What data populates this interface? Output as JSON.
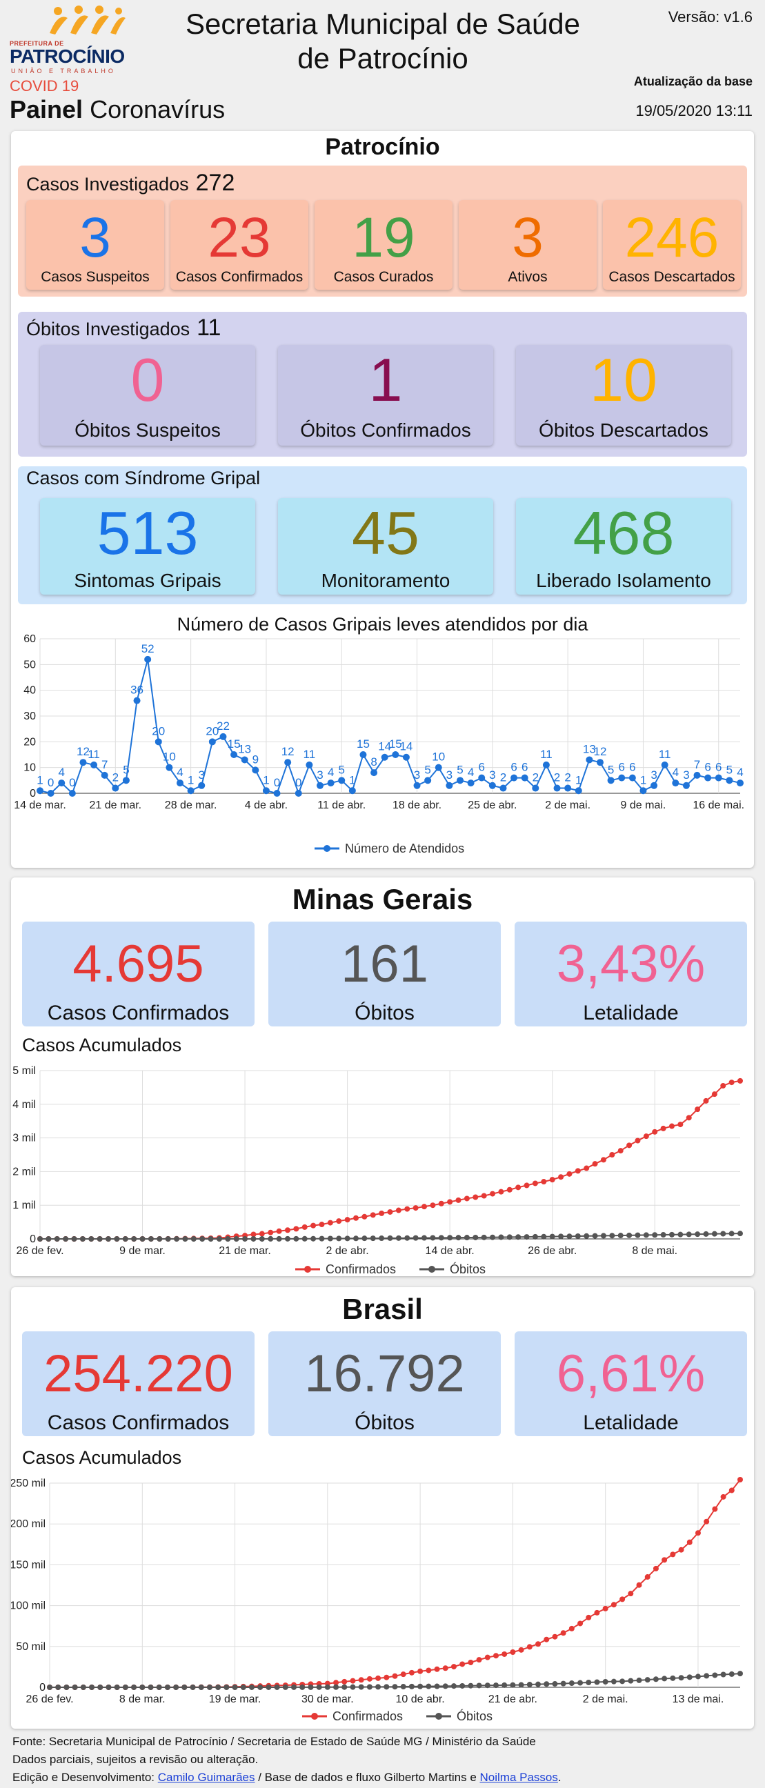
{
  "header": {
    "logo_top": "PREFEITURA DE",
    "logo_brand": "PATROCÍNIO",
    "logo_tag": "UNIÃO E TRABALHO",
    "title_line1": "Secretaria Municipal de Saúde",
    "title_line2": "de Patrocínio",
    "version": "Versão: v1.6",
    "covid_label": "COVID 19",
    "panel_bold": "Painel",
    "panel_rest": "Coronavírus",
    "update_label": "Atualização da base",
    "update_time": "19/05/2020 13:11"
  },
  "patrocinio": {
    "title": "Patrocínio",
    "casos": {
      "label": "Casos Investigados",
      "count": "272",
      "tiles": [
        {
          "value": "3",
          "label": "Casos Suspeitos",
          "color": "#1a73e8"
        },
        {
          "value": "23",
          "label": "Casos Confirmados",
          "color": "#e53935"
        },
        {
          "value": "19",
          "label": "Casos Curados",
          "color": "#43a047"
        },
        {
          "value": "3",
          "label": "Ativos",
          "color": "#ef6c00"
        },
        {
          "value": "246",
          "label": "Casos Descartados",
          "color": "#ffb300"
        }
      ]
    },
    "obitos": {
      "label": "Óbitos Investigados",
      "count": "11",
      "tiles": [
        {
          "value": "0",
          "label": "Óbitos Suspeitos",
          "color": "#f06292"
        },
        {
          "value": "1",
          "label": "Óbitos Confirmados",
          "color": "#880e4f"
        },
        {
          "value": "10",
          "label": "Óbitos Descartados",
          "color": "#ffb300"
        }
      ]
    },
    "sindrome": {
      "label": "Casos com Síndrome Gripal",
      "tiles": [
        {
          "value": "513",
          "label": "Sintomas Gripais",
          "color": "#1a73e8"
        },
        {
          "value": "45",
          "label": "Monitoramento",
          "color": "#827717"
        },
        {
          "value": "468",
          "label": "Liberado Isolamento",
          "color": "#43a047"
        }
      ]
    }
  },
  "chart_data": [
    {
      "type": "line",
      "title": "Número de Casos Gripais leves atendidos por dia",
      "x_start": "14 de mar.",
      "x_end": "17 de mai.",
      "x_tick_labels": [
        "14 de mar.",
        "21 de mar.",
        "28 de mar.",
        "4 de abr.",
        "11 de abr.",
        "18 de abr.",
        "25 de abr.",
        "2 de mai.",
        "9 de mai.",
        "16 de mai."
      ],
      "ylim": [
        0,
        60
      ],
      "y_tick_labels": [
        "0",
        "10",
        "20",
        "30",
        "40",
        "50",
        "60"
      ],
      "series": [
        {
          "name": "Número de Atendidos",
          "color": "#1e73d8",
          "values": [
            1,
            0,
            4,
            0,
            12,
            11,
            7,
            2,
            5,
            36,
            52,
            20,
            10,
            4,
            1,
            3,
            20,
            22,
            15,
            13,
            9,
            1,
            0,
            12,
            0,
            11,
            3,
            4,
            5,
            1,
            15,
            8,
            14,
            15,
            14,
            3,
            5,
            10,
            3,
            5,
            4,
            6,
            3,
            2,
            6,
            6,
            2,
            11,
            2,
            2,
            1,
            13,
            12,
            5,
            6,
            6,
            1,
            3,
            11,
            4,
            3,
            7,
            6,
            6,
            5,
            4
          ]
        }
      ],
      "legend": "bottom",
      "grid": true
    },
    {
      "type": "line",
      "title": "Casos Acumulados",
      "x_start": "26 de fev.",
      "x_end": "18 de mai.",
      "x_tick_labels": [
        "26 de fev.",
        "9 de mar.",
        "21 de mar.",
        "2 de abr.",
        "14 de abr.",
        "26 de abr.",
        "8 de mai."
      ],
      "ylim": [
        0,
        5000
      ],
      "y_tick_labels": [
        "0",
        "1 mil",
        "2 mil",
        "3 mil",
        "4 mil",
        "5 mil"
      ],
      "series": [
        {
          "name": "Confirmados",
          "color": "#e53935",
          "values": [
            0,
            0,
            0,
            0,
            0,
            0,
            0,
            0,
            0,
            0,
            0,
            0,
            0,
            1,
            1,
            2,
            4,
            8,
            12,
            16,
            21,
            30,
            50,
            80,
            100,
            133,
            153,
            190,
            230,
            261,
            300,
            350,
            397,
            430,
            480,
            530,
            570,
            620,
            660,
            710,
            760,
            800,
            850,
            890,
            920,
            960,
            1000,
            1050,
            1100,
            1150,
            1200,
            1240,
            1280,
            1340,
            1400,
            1460,
            1530,
            1590,
            1650,
            1700,
            1760,
            1840,
            1930,
            2020,
            2100,
            2230,
            2350,
            2500,
            2620,
            2780,
            2920,
            3050,
            3180,
            3280,
            3350,
            3400,
            3600,
            3850,
            4100,
            4300,
            4550,
            4650,
            4695
          ]
        },
        {
          "name": "Óbitos",
          "color": "#555555",
          "values": [
            0,
            0,
            0,
            0,
            0,
            0,
            0,
            0,
            0,
            0,
            0,
            0,
            0,
            0,
            0,
            0,
            0,
            0,
            0,
            0,
            0,
            0,
            0,
            0,
            1,
            1,
            1,
            2,
            2,
            3,
            3,
            4,
            6,
            8,
            10,
            12,
            14,
            15,
            17,
            18,
            20,
            22,
            24,
            26,
            28,
            30,
            32,
            34,
            36,
            38,
            40,
            42,
            44,
            47,
            50,
            53,
            56,
            60,
            63,
            66,
            70,
            74,
            78,
            82,
            86,
            90,
            94,
            98,
            102,
            106,
            110,
            114,
            118,
            122,
            126,
            130,
            135,
            140,
            145,
            150,
            154,
            158,
            161
          ]
        }
      ],
      "legend": "bottom",
      "grid": true
    },
    {
      "type": "line",
      "title": "Casos Acumulados",
      "x_start": "26 de fev.",
      "x_end": "18 de mai.",
      "x_tick_labels": [
        "26 de fev.",
        "8 de mar.",
        "19 de mar.",
        "30 de mar.",
        "10 de abr.",
        "21 de abr.",
        "2 de mai.",
        "13 de mai."
      ],
      "ylim": [
        0,
        250000
      ],
      "y_tick_labels": [
        "0",
        "50 mil",
        "100 mil",
        "150 mil",
        "200 mil",
        "250 mil"
      ],
      "series": [
        {
          "name": "Confirmados",
          "color": "#e53935",
          "values": [
            1,
            1,
            1,
            2,
            2,
            2,
            2,
            3,
            8,
            13,
            20,
            25,
            31,
            38,
            52,
            77,
            98,
            121,
            200,
            234,
            291,
            428,
            621,
            904,
            1128,
            1546,
            1891,
            2201,
            2433,
            2915,
            3417,
            3904,
            4256,
            4579,
            5717,
            6836,
            7910,
            9056,
            10278,
            11130,
            12056,
            13717,
            15927,
            17857,
            19638,
            20727,
            22169,
            23430,
            25262,
            28320,
            30425,
            33682,
            36599,
            38654,
            40581,
            43079,
            45757,
            49492,
            52995,
            58509,
            61888,
            66501,
            71886,
            78162,
            85380,
            91299,
            96396,
            101147,
            107780,
            114715,
            125218,
            135106,
            145328,
            155939,
            162699,
            168331,
            177589,
            188974,
            202918,
            218223,
            233142,
            241080,
            254220
          ]
        },
        {
          "name": "Óbitos",
          "color": "#555555",
          "values": [
            0,
            0,
            0,
            0,
            0,
            0,
            0,
            0,
            0,
            0,
            0,
            0,
            0,
            0,
            0,
            0,
            0,
            0,
            0,
            0,
            1,
            4,
            6,
            11,
            18,
            25,
            34,
            46,
            59,
            77,
            92,
            111,
            136,
            159,
            201,
            240,
            299,
            359,
            432,
            486,
            553,
            667,
            800,
            941,
            1056,
            1124,
            1223,
            1328,
            1532,
            1736,
            1924,
            2141,
            2347,
            2462,
            2587,
            2741,
            2906,
            3331,
            3670,
            4016,
            4205,
            4543,
            5017,
            5466,
            5901,
            6329,
            6750,
            7025,
            7321,
            7921,
            8536,
            9146,
            9897,
            10627,
            11123,
            11653,
            12400,
            13149,
            13993,
            14817,
            15633,
            16118,
            16792
          ]
        }
      ],
      "legend": "bottom",
      "grid": true
    }
  ],
  "minas": {
    "title": "Minas Gerais",
    "tiles": [
      {
        "value": "4.695",
        "label": "Casos Confirmados",
        "color": "#e53935"
      },
      {
        "value": "161",
        "label": "Óbitos",
        "color": "#555555"
      },
      {
        "value": "3,43%",
        "label": "Letalidade",
        "color": "#f06292"
      }
    ]
  },
  "brasil": {
    "title": "Brasil",
    "tiles": [
      {
        "value": "254.220",
        "label": "Casos Confirmados",
        "color": "#e53935"
      },
      {
        "value": "16.792",
        "label": "Óbitos",
        "color": "#555555"
      },
      {
        "value": "6,61%",
        "label": "Letalidade",
        "color": "#f06292"
      }
    ]
  },
  "footer": {
    "line1": "Fonte: Secretaria Municipal de Patrocínio / Secretaria de Estado de Saúde MG / Ministério da Saúde",
    "line2": "Dados parciais, sujeitos a revisão ou alteração.",
    "line3_prefix": "Edição e Desenvolvimento: ",
    "link1": "Camilo Guimarães",
    "line3_mid": " / Base de dados e fluxo Gilberto Martins e ",
    "link2": "Noilma Passos",
    "line3_suffix": "."
  }
}
